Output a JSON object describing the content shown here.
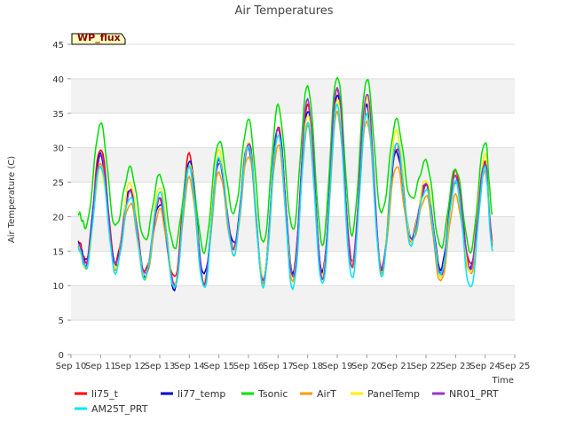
{
  "chart_data": {
    "type": "line",
    "title": "Air Temperatures",
    "xlabel": "Time",
    "ylabel": "Air Temperature (C)",
    "site_label": "WP_flux",
    "xlim": [
      10,
      25
    ],
    "ylim": [
      0,
      45
    ],
    "yticks": [
      0,
      5,
      10,
      15,
      20,
      25,
      30,
      35,
      40,
      45
    ],
    "xticks": [
      {
        "day": 10,
        "label": "Sep 10"
      },
      {
        "day": 11,
        "label": "Sep 11"
      },
      {
        "day": 12,
        "label": "Sep 12"
      },
      {
        "day": 13,
        "label": "Sep 13"
      },
      {
        "day": 14,
        "label": "Sep 14"
      },
      {
        "day": 15,
        "label": "Sep 15"
      },
      {
        "day": 16,
        "label": "Sep 16"
      },
      {
        "day": 17,
        "label": "Sep 17"
      },
      {
        "day": 18,
        "label": "Sep 18"
      },
      {
        "day": 19,
        "label": "Sep 19"
      },
      {
        "day": 20,
        "label": "Sep 20"
      },
      {
        "day": 21,
        "label": "Sep 21"
      },
      {
        "day": 22,
        "label": "Sep 22"
      },
      {
        "day": 23,
        "label": "Sep 23"
      },
      {
        "day": 24,
        "label": "Sep 24"
      },
      {
        "day": 25,
        "label": "Sep 25"
      }
    ],
    "grid": "horizontal alternating bands",
    "legend_position": "bottom",
    "x": [
      10.25,
      10.5,
      11.0,
      11.5,
      12.0,
      12.5,
      13.0,
      13.5,
      14.0,
      14.5,
      15.0,
      15.5,
      16.0,
      16.5,
      17.0,
      17.5,
      18.0,
      18.5,
      19.0,
      19.5,
      20.0,
      20.5,
      21.0,
      21.5,
      22.0,
      22.5,
      23.0,
      23.5,
      24.0,
      24.25
    ],
    "series": [
      {
        "name": "li75_t",
        "color": "#ff0000",
        "values": [
          16.5,
          13.5,
          30.0,
          13.5,
          24.0,
          12.0,
          22.5,
          11.0,
          29.0,
          10.0,
          28.5,
          15.5,
          31.0,
          10.5,
          33.0,
          11.5,
          36.0,
          11.5,
          38.5,
          13.5,
          36.5,
          12.5,
          30.0,
          16.5,
          24.5,
          12.0,
          26.5,
          13.0,
          28.0,
          16.5
        ]
      },
      {
        "name": "li77_temp",
        "color": "#0000cc",
        "values": [
          16.0,
          13.5,
          29.0,
          13.0,
          24.0,
          11.5,
          22.0,
          9.5,
          28.0,
          11.5,
          28.0,
          16.0,
          30.0,
          11.0,
          33.0,
          12.0,
          35.5,
          12.0,
          37.5,
          13.0,
          36.0,
          12.5,
          29.5,
          17.0,
          25.0,
          12.5,
          25.0,
          12.5,
          27.5,
          16.0
        ]
      },
      {
        "name": "Tsonic",
        "color": "#00e000",
        "values": [
          20.5,
          18.5,
          33.5,
          18.5,
          27.0,
          16.5,
          26.0,
          15.5,
          27.5,
          15.0,
          31.0,
          20.5,
          34.0,
          16.0,
          36.0,
          18.0,
          39.0,
          16.0,
          40.5,
          17.5,
          40.0,
          20.5,
          34.0,
          22.5,
          28.0,
          15.5,
          27.0,
          15.0,
          31.0,
          20.5
        ]
      },
      {
        "name": "AirT",
        "color": "#ff9900",
        "values": [
          15.5,
          12.5,
          28.0,
          12.5,
          22.0,
          11.0,
          21.0,
          10.0,
          25.5,
          10.0,
          26.5,
          14.5,
          29.0,
          10.5,
          30.5,
          10.5,
          33.0,
          10.5,
          35.0,
          12.5,
          34.0,
          12.0,
          27.5,
          16.0,
          23.0,
          10.5,
          23.0,
          11.5,
          26.5,
          15.5
        ]
      },
      {
        "name": "PanelTemp",
        "color": "#ffee00",
        "values": [
          15.5,
          12.5,
          27.0,
          12.5,
          25.0,
          11.0,
          24.5,
          10.0,
          27.5,
          10.5,
          29.5,
          15.0,
          30.5,
          11.0,
          32.0,
          11.5,
          35.0,
          11.5,
          37.0,
          13.0,
          37.0,
          12.5,
          32.5,
          16.5,
          25.5,
          11.5,
          25.0,
          12.0,
          29.0,
          16.0
        ]
      },
      {
        "name": "NR01_PRT",
        "color": "#9933cc",
        "values": [
          16.0,
          13.0,
          29.0,
          13.0,
          23.5,
          11.5,
          22.5,
          10.0,
          27.5,
          10.5,
          28.0,
          15.5,
          30.5,
          10.5,
          32.5,
          11.0,
          37.0,
          11.0,
          39.0,
          13.0,
          38.0,
          12.5,
          30.5,
          16.5,
          24.5,
          11.5,
          26.0,
          12.5,
          28.0,
          16.0
        ]
      },
      {
        "name": "AM25T_PRT",
        "color": "#00e5ff",
        "values": [
          15.5,
          12.5,
          27.5,
          12.0,
          23.0,
          11.0,
          23.5,
          9.5,
          27.0,
          9.5,
          28.5,
          14.5,
          30.5,
          10.0,
          32.0,
          9.5,
          33.5,
          10.0,
          36.0,
          11.0,
          35.0,
          11.5,
          31.0,
          16.0,
          24.0,
          11.5,
          25.0,
          9.5,
          27.0,
          15.0
        ]
      }
    ]
  }
}
